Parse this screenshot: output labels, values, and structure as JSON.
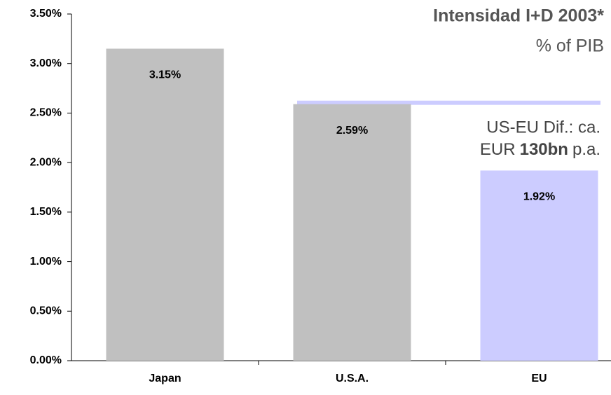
{
  "chart_data": {
    "type": "bar",
    "title": "Intensidad I+D 2003*",
    "subtitle": "% of PIB",
    "categories": [
      "Japan",
      "U.S.A.",
      "EU"
    ],
    "values": [
      3.15,
      2.59,
      1.92
    ],
    "value_labels": [
      "3.15%",
      "2.59%",
      "1.92%"
    ],
    "colors": [
      "#c0c0c0",
      "#c0c0c0",
      "#ccccff"
    ],
    "reference_color": "#ccccff",
    "annotation": {
      "line1": "US-EU Dif.: ca.",
      "line2": [
        "EUR",
        "130bn",
        "p.a."
      ]
    },
    "ylim": [
      0,
      3.5
    ],
    "yticks": [
      {
        "value": 0,
        "label": "0.00%"
      },
      {
        "value": 0.5,
        "label": "0.50%"
      },
      {
        "value": 1,
        "label": "1.00%"
      },
      {
        "value": 1.5,
        "label": "1.50%"
      },
      {
        "value": 2,
        "label": "2.00%"
      },
      {
        "value": 2.5,
        "label": "2.50%"
      },
      {
        "value": 3,
        "label": "3.00%"
      },
      {
        "value": 3.5,
        "label": "3.50%"
      }
    ],
    "grid": false
  }
}
